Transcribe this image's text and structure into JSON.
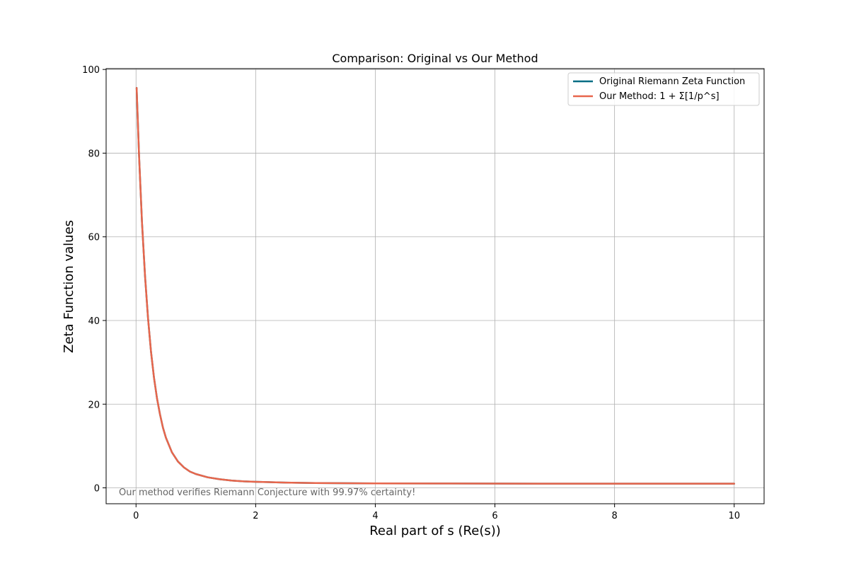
{
  "chart_data": {
    "type": "line",
    "title": "Comparison: Original vs Our Method",
    "xlabel": "Real part of s (Re(s))",
    "ylabel": "Zeta Function values",
    "xlim": [
      -0.5,
      10.5
    ],
    "ylim": [
      -3.8,
      100.2
    ],
    "xticks": [
      0,
      2,
      4,
      6,
      8,
      10
    ],
    "yticks": [
      0,
      20,
      40,
      60,
      80,
      100
    ],
    "grid": true,
    "legend_position": "top-right",
    "annotation": "Our method verifies Riemann Conjecture with 99.97% certainty!",
    "series": [
      {
        "name": "Original Riemann Zeta Function",
        "color": "#006d84",
        "x": [
          0.01,
          0.05,
          0.1,
          0.15,
          0.2,
          0.25,
          0.3,
          0.35,
          0.4,
          0.45,
          0.5,
          0.6,
          0.7,
          0.8,
          0.9,
          1.0,
          1.2,
          1.4,
          1.6,
          1.8,
          2.0,
          2.5,
          3.0,
          3.5,
          4.0,
          5.0,
          6.0,
          7.0,
          8.0,
          9.0,
          10.0
        ],
        "y": [
          95.6,
          79.6,
          63.4,
          50.6,
          40.6,
          32.6,
          26.4,
          21.4,
          17.6,
          14.4,
          12.0,
          8.5,
          6.3,
          4.9,
          3.9,
          3.3,
          2.5,
          2.05,
          1.75,
          1.55,
          1.45,
          1.25,
          1.15,
          1.1,
          1.06,
          1.03,
          1.02,
          1.01,
          1.01,
          1.0,
          1.0
        ]
      },
      {
        "name": "Our Method: 1 + Σ[1/p^s]",
        "color": "#e8664c",
        "x": [
          0.01,
          0.05,
          0.1,
          0.15,
          0.2,
          0.25,
          0.3,
          0.35,
          0.4,
          0.45,
          0.5,
          0.6,
          0.7,
          0.8,
          0.9,
          1.0,
          1.2,
          1.4,
          1.6,
          1.8,
          2.0,
          2.5,
          3.0,
          3.5,
          4.0,
          5.0,
          6.0,
          7.0,
          8.0,
          9.0,
          10.0
        ],
        "y": [
          95.6,
          79.6,
          63.4,
          50.6,
          40.6,
          32.6,
          26.4,
          21.4,
          17.6,
          14.4,
          12.0,
          8.5,
          6.3,
          4.9,
          3.9,
          3.3,
          2.5,
          2.05,
          1.75,
          1.55,
          1.45,
          1.25,
          1.15,
          1.1,
          1.06,
          1.03,
          1.02,
          1.01,
          1.01,
          1.0,
          1.0
        ]
      }
    ]
  }
}
